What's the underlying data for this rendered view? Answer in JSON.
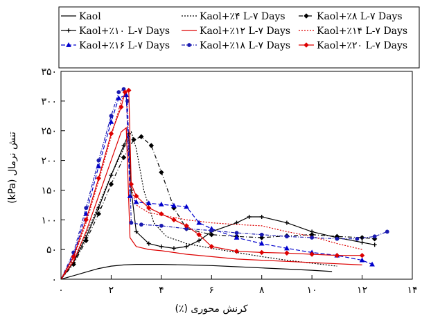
{
  "chart_data": {
    "type": "line",
    "xlabel": "کرنش محوری (٪)",
    "ylabel": "تنش نرمال (kPa)",
    "xlim": [
      0,
      14
    ],
    "ylim": [
      0,
      350
    ],
    "xticks": [
      0,
      2,
      4,
      6,
      8,
      10,
      12,
      14
    ],
    "xtick_labels": [
      "۰",
      "۲",
      "۴",
      "۶",
      "۸",
      "۱۰",
      "۱۲",
      "۱۴"
    ],
    "yticks": [
      0,
      50,
      100,
      150,
      200,
      250,
      300,
      350
    ],
    "ytick_labels": [
      "۰",
      "۵۰",
      "۱۰۰",
      "۱۵۰",
      "۲۰۰",
      "۲۵۰",
      "۳۰۰",
      "۳۵۰"
    ],
    "series": [
      {
        "name": "Kaol",
        "color": "#000000",
        "dash": "",
        "marker": "none",
        "x": [
          0,
          0.5,
          1,
          1.5,
          2,
          2.5,
          3,
          3.5,
          4,
          5,
          6,
          7,
          8,
          9,
          10,
          10.8
        ],
        "y": [
          0,
          6,
          12,
          18,
          22,
          24,
          25,
          25,
          25,
          24,
          23,
          21,
          19,
          17,
          15,
          13
        ]
      },
      {
        "name": "Kaol+٪۴ L-۷ Days",
        "color": "#000000",
        "dash": "2,2",
        "marker": "none",
        "x": [
          0,
          0.5,
          1,
          1.5,
          2,
          2.5,
          2.8,
          3,
          3.3,
          3.7,
          4.2,
          5,
          6,
          7,
          8,
          9,
          10,
          11
        ],
        "y": [
          0,
          30,
          75,
          125,
          175,
          220,
          248,
          220,
          150,
          95,
          72,
          60,
          52,
          45,
          38,
          32,
          27,
          22
        ]
      },
      {
        "name": "Kaol+٪۸ L-۷ Days",
        "color": "#000000",
        "dash": "6,3,1,3",
        "marker": "diamond",
        "x": [
          0,
          0.5,
          1,
          1.5,
          2,
          2.5,
          2.9,
          3.2,
          3.6,
          4,
          4.5,
          5,
          6,
          7,
          8,
          9,
          10,
          11,
          12,
          12.5
        ],
        "y": [
          0,
          25,
          65,
          110,
          160,
          205,
          235,
          240,
          225,
          180,
          120,
          85,
          75,
          72,
          70,
          73,
          75,
          72,
          70,
          68
        ]
      },
      {
        "name": "Kaol+٪۱۰ L-۷ Days",
        "color": "#000000",
        "dash": "",
        "marker": "plus",
        "x": [
          0,
          0.5,
          1,
          1.5,
          2,
          2.5,
          2.7,
          2.8,
          3,
          3.5,
          4,
          4.5,
          5,
          5.5,
          6,
          7,
          7.5,
          8,
          9,
          10,
          11,
          12,
          12.5
        ],
        "y": [
          0,
          28,
          70,
          120,
          175,
          225,
          245,
          150,
          80,
          60,
          55,
          52,
          55,
          65,
          80,
          95,
          105,
          105,
          95,
          80,
          70,
          62,
          58
        ]
      },
      {
        "name": "Kaol+٪۱۲ L-۷ Days",
        "color": "#dd0000",
        "dash": "",
        "marker": "none",
        "x": [
          0,
          0.5,
          1,
          1.5,
          2,
          2.4,
          2.6,
          2.75,
          3,
          3.5,
          4,
          5,
          6,
          7,
          8,
          9,
          10,
          11,
          12
        ],
        "y": [
          0,
          30,
          80,
          140,
          200,
          248,
          255,
          70,
          55,
          50,
          48,
          42,
          38,
          34,
          32,
          30,
          28,
          26,
          24
        ]
      },
      {
        "name": "Kaol+٪۱۴ L-۷ Days",
        "color": "#dd0000",
        "dash": "2,2",
        "marker": "none",
        "x": [
          0,
          0.5,
          1,
          1.5,
          2,
          2.4,
          2.6,
          2.75,
          3,
          3.5,
          4,
          5,
          6,
          7,
          8,
          9,
          10,
          11,
          12
        ],
        "y": [
          0,
          35,
          95,
          165,
          240,
          300,
          315,
          160,
          125,
          112,
          108,
          100,
          95,
          92,
          90,
          80,
          72,
          60,
          50
        ]
      },
      {
        "name": "Kaol+٪۱۶ L-۷ Days",
        "color": "#0000cc",
        "dash": "6,3",
        "marker": "triangle",
        "x": [
          0,
          0.5,
          1,
          1.5,
          2,
          2.3,
          2.6,
          2.75,
          3,
          3.5,
          4,
          4.5,
          5,
          5.5,
          6,
          7,
          8,
          9,
          10,
          11,
          12,
          12.4
        ],
        "y": [
          0,
          40,
          110,
          190,
          265,
          305,
          310,
          140,
          130,
          128,
          126,
          124,
          122,
          95,
          85,
          70,
          60,
          52,
          45,
          40,
          32,
          25
        ]
      },
      {
        "name": "Kaol+٪۱۸ L-۷ Days",
        "color": "#1a1ab0",
        "dash": "5,2,1,2",
        "marker": "dot",
        "x": [
          0,
          0.5,
          1,
          1.5,
          2,
          2.3,
          2.5,
          2.65,
          2.8,
          3.2,
          4,
          5,
          6,
          7,
          8,
          9,
          10,
          11,
          11.8,
          12.5,
          13
        ],
        "y": [
          0,
          45,
          120,
          200,
          275,
          315,
          320,
          300,
          95,
          92,
          90,
          85,
          82,
          78,
          75,
          72,
          70,
          68,
          68,
          72,
          80
        ]
      },
      {
        "name": "Kaol+٪۲۰ L-۷ Days",
        "color": "#dd0000",
        "dash": "",
        "marker": "diamond",
        "x": [
          0,
          0.5,
          1,
          1.5,
          2,
          2.4,
          2.55,
          2.7,
          2.8,
          3,
          3.5,
          4,
          4.5,
          5,
          5.5,
          6,
          7,
          8,
          9,
          10,
          11,
          12
        ],
        "y": [
          0,
          38,
          100,
          170,
          245,
          290,
          315,
          318,
          160,
          140,
          120,
          110,
          100,
          90,
          75,
          55,
          47,
          45,
          44,
          42,
          40,
          40
        ]
      }
    ]
  }
}
